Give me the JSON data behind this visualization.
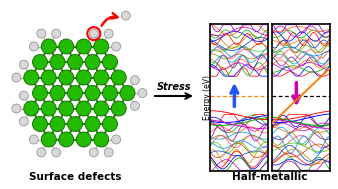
{
  "bg_color": "#ffffff",
  "title_left": "Surface defects",
  "title_right": "Half-metallic",
  "stress_label": "Stress",
  "ylabel": "Energy (eV)",
  "ge_color": "#22bb00",
  "ge_edge_color": "#116600",
  "h_color": "#d8d8d8",
  "h_edge_color": "#888888",
  "bond_color": "#228800",
  "h_bond_color": "#aaaaaa",
  "panel_bg": "#ffffff",
  "fermi_color_left": "#ff8800",
  "fermi_color_right": "#000000",
  "arrow_up_color": "#2255ff",
  "arrow_down_color": "#cc00aa",
  "band_colors": [
    "#ff0000",
    "#0000ff",
    "#00aa00",
    "#cc00cc",
    "#ff6600",
    "#8800cc",
    "#00aacc",
    "#888800",
    "#ff4488",
    "#0088ff",
    "#44cc00",
    "#cc4400",
    "#0044cc",
    "#cc8800"
  ],
  "defect_circle_color": "#ff0000",
  "stress_arrow_color": "#000000"
}
